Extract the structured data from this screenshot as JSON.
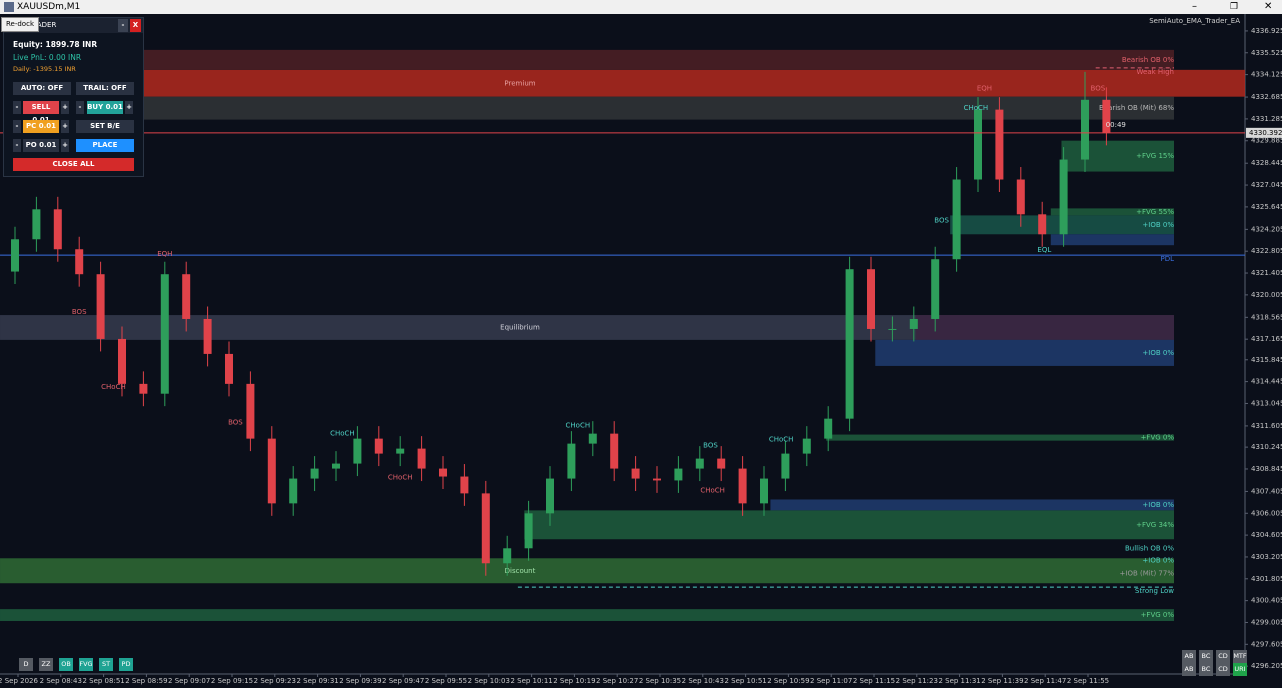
{
  "window": {
    "title": "XAUUSDm,M1",
    "ea_name": "SemiAuto_EMA_Trader_EA"
  },
  "panel": {
    "redock": "Re-dock",
    "title": "TRADER",
    "minimize": "-",
    "close": "X",
    "equity": "Equity: 1899.78 INR",
    "live_pnl": "Live PnL: 0.00 INR",
    "daily": "Daily: -1395.15 INR",
    "auto": "AUTO: OFF",
    "trail": "TRAIL: OFF",
    "minus": "-",
    "plus": "+",
    "sell": "SELL 0.01",
    "buy": "BUY 0.01",
    "pc": "PC 0.01",
    "set_be": "SET B/E",
    "po": "PO 0.01",
    "place": "PLACE",
    "close_all": "CLOSE ALL"
  },
  "toolbar": {
    "left": [
      "D",
      "ZZ",
      "OB",
      "FVG",
      "ST",
      "PD"
    ],
    "right_top": [
      "AB",
      "BC",
      "CD",
      "MTF"
    ],
    "right_bottom": [
      "AB",
      "BC",
      "CD",
      "URI"
    ]
  },
  "chart_data": {
    "type": "candlestick",
    "countdown": "00:49",
    "up_color": "#2e9e5b",
    "down_color": "#e0434a",
    "ylim": [
      4295.83,
      4338.01
    ],
    "yticks": [
      4336.925,
      4335.525,
      4334.125,
      4332.685,
      4331.285,
      4329.885,
      4328.445,
      4327.045,
      4325.645,
      4324.205,
      4322.805,
      4321.405,
      4320.005,
      4318.565,
      4317.165,
      4315.845,
      4314.445,
      4313.045,
      4311.605,
      4310.245,
      4308.845,
      4307.405,
      4306.005,
      4304.605,
      4303.205,
      4301.805,
      4300.405,
      4299.005,
      4297.605,
      4296.205
    ],
    "current_price": 4330.392,
    "time_labels": [
      "2 Sep 2026",
      "2 Sep 08:43",
      "2 Sep 08:51",
      "2 Sep 08:59",
      "2 Sep 09:07",
      "2 Sep 09:15",
      "2 Sep 09:23",
      "2 Sep 09:31",
      "2 Sep 09:39",
      "2 Sep 09:47",
      "2 Sep 09:55",
      "2 Sep 10:03",
      "2 Sep 10:11",
      "2 Sep 10:19",
      "2 Sep 10:27",
      "2 Sep 10:35",
      "2 Sep 10:43",
      "2 Sep 10:51",
      "2 Sep 10:59",
      "2 Sep 11:07",
      "2 Sep 11:15",
      "2 Sep 11:23",
      "2 Sep 11:31",
      "2 Sep 11:39",
      "2 Sep 11:47",
      "2 Sep 11:55"
    ],
    "open": [
      4321.5,
      4323.57,
      4325.49,
      4322.93,
      4321.33,
      4317.18,
      4314.3,
      4313.67,
      4321.33,
      4318.46,
      4316.22,
      4314.3,
      4310.79,
      4306.64,
      4308.23,
      4308.87,
      4309.19,
      4310.79,
      4309.83,
      4310.15,
      4308.87,
      4308.36,
      4307.28,
      4302.8,
      4303.76,
      4306.0,
      4308.23,
      4310.47,
      4311.11,
      4308.87,
      4308.23,
      4308.11,
      4308.87,
      4309.51,
      4308.87,
      4306.64,
      4308.23,
      4309.83,
      4310.79,
      4312.07,
      4321.65,
      4317.82,
      4317.82,
      4318.46,
      4322.29,
      4327.4,
      4331.88,
      4327.4,
      4325.17,
      4323.89,
      4328.68,
      4332.51
    ],
    "high": [
      4324.37,
      4326.29,
      4326.29,
      4323.73,
      4322.13,
      4317.98,
      4315.1,
      4322.13,
      4322.13,
      4319.26,
      4317.02,
      4315.1,
      4311.59,
      4309.03,
      4309.67,
      4309.99,
      4311.59,
      4311.59,
      4310.95,
      4310.95,
      4309.67,
      4309.16,
      4308.08,
      4304.56,
      4306.8,
      4309.03,
      4311.27,
      4311.91,
      4311.91,
      4309.67,
      4309.03,
      4309.67,
      4310.31,
      4310.31,
      4309.67,
      4309.03,
      4310.63,
      4311.59,
      4312.87,
      4322.45,
      4322.45,
      4318.62,
      4319.26,
      4323.09,
      4328.2,
      4332.68,
      4332.68,
      4328.2,
      4325.97,
      4329.48,
      4334.3,
      4333.31
    ],
    "low": [
      4320.7,
      4322.77,
      4322.13,
      4320.53,
      4316.38,
      4313.5,
      4312.87,
      4312.87,
      4317.66,
      4315.42,
      4313.5,
      4309.99,
      4305.84,
      4305.84,
      4307.43,
      4308.07,
      4308.39,
      4309.03,
      4309.03,
      4308.07,
      4307.56,
      4306.48,
      4302.0,
      4302.0,
      4302.96,
      4305.2,
      4307.43,
      4309.67,
      4308.07,
      4307.43,
      4307.31,
      4307.31,
      4308.07,
      4308.07,
      4305.84,
      4305.84,
      4307.43,
      4309.03,
      4309.99,
      4311.27,
      4317.02,
      4317.02,
      4317.02,
      4317.66,
      4321.49,
      4326.6,
      4326.6,
      4324.37,
      4323.09,
      4323.09,
      4327.88,
      4329.59
    ],
    "close": [
      4323.57,
      4325.49,
      4322.93,
      4321.33,
      4317.18,
      4314.3,
      4313.67,
      4321.33,
      4318.46,
      4316.22,
      4314.3,
      4310.79,
      4306.64,
      4308.23,
      4308.87,
      4309.19,
      4310.79,
      4309.83,
      4310.15,
      4308.87,
      4308.36,
      4307.28,
      4302.8,
      4303.76,
      4306.0,
      4308.23,
      4310.47,
      4311.11,
      4308.87,
      4308.23,
      4308.11,
      4308.87,
      4309.51,
      4308.87,
      4306.64,
      4308.23,
      4309.83,
      4310.79,
      4312.07,
      4321.65,
      4317.82,
      4317.82,
      4318.46,
      4322.29,
      4327.4,
      4331.88,
      4327.4,
      4325.17,
      4323.89,
      4328.68,
      4332.51,
      4330.39
    ],
    "areas": [
      {
        "label": "Premium",
        "top": 4334.43,
        "bottom": 4332.71,
        "from": 5.8,
        "color": "#b3291f",
        "text_color": "#e8a0a0"
      },
      {
        "label": "Equilibrium",
        "top": 4318.71,
        "bottom": 4317.12,
        "from": -0.7,
        "color": "#363b4f",
        "text_color": "#d0d0d8"
      },
      {
        "label": "Discount",
        "top": 4303.12,
        "bottom": 4301.52,
        "from": -0.7,
        "color": "#2f6b35",
        "text_color": "#9fe0a8"
      }
    ],
    "zones": [
      {
        "label": "Bearish OB 0%",
        "top": 4335.71,
        "bottom": 4334.43,
        "from": 5.8,
        "color": "#4a1f25",
        "text_color": "#e0606a"
      },
      {
        "label": "Bearish OB (Mit) 68%",
        "top": 4332.71,
        "bottom": 4331.24,
        "from": 5.8,
        "color": "#2f3336",
        "text_color": "#b8b8b8"
      },
      {
        "label": "+FVG 15%",
        "top": 4329.89,
        "bottom": 4327.91,
        "from": 48.9,
        "color": "#1d5a3c",
        "text_color": "#5fd08a"
      },
      {
        "label": "+FVG 55%",
        "top": 4325.55,
        "bottom": 4325.1,
        "from": 48.4,
        "color": "#1d5a3c",
        "text_color": "#5fd08a"
      },
      {
        "label": "+IOB 0%",
        "top": 4325.1,
        "bottom": 4323.89,
        "from": 43.7,
        "color": "#175248",
        "text_color": "#4fd1c5"
      },
      {
        "top": 4323.89,
        "bottom": 4323.19,
        "from": 48.4,
        "color": "#1e3a6b"
      },
      {
        "top": 4318.71,
        "bottom": 4317.12,
        "from": 42.1,
        "color": "#3a2540"
      },
      {
        "label": "+IOB 0%",
        "top": 4317.12,
        "bottom": 4315.45,
        "from": 40.2,
        "color": "#1e3a6b",
        "text_color": "#4fd1c5"
      },
      {
        "label": "+FVG 0%",
        "top": 4311.05,
        "bottom": 4310.66,
        "from": 37.9,
        "color": "#1d5a3c",
        "text_color": "#5fd08a"
      },
      {
        "label": "+IOB 0%",
        "top": 4306.89,
        "bottom": 4306.19,
        "from": 35.3,
        "color": "#1e3a6b",
        "text_color": "#4fd1c5"
      },
      {
        "label": "+FVG 34%",
        "top": 4306.19,
        "bottom": 4304.34,
        "from": 23.8,
        "color": "#1d5a3c",
        "text_color": "#5fd08a"
      },
      {
        "label": "+FVG 0%",
        "top": 4299.86,
        "bottom": 4299.1,
        "from": -0.7,
        "color": "#1d5a3c",
        "text_color": "#5fd08a"
      }
    ],
    "levels": [
      {
        "label": "Weak High",
        "price": 4334.56,
        "line": true,
        "dashed": true,
        "from": 50.5,
        "color": "#e06070"
      },
      {
        "label": "PDL",
        "price": 4322.55,
        "line": true,
        "dashed": false,
        "from": -0.7,
        "color": "#3b6fe0"
      },
      {
        "label": "Bullish OB 0%",
        "price": 4303.76,
        "line": false,
        "color": "#4fd1c5"
      },
      {
        "label": "+IOB 0%",
        "price": 4302.99,
        "line": false,
        "color": "#4fd1c5"
      },
      {
        "label": "+IOB (Mit) 77%",
        "price": 4302.16,
        "line": false,
        "color": "#9a9a9a"
      },
      {
        "label": "Strong Low",
        "price": 4301.27,
        "line": true,
        "dashed": true,
        "from": 23.5,
        "color": "#4fd1c5"
      }
    ],
    "markers": [
      {
        "label": "EQH",
        "price": 4322.61,
        "index": 7,
        "color": "#e0606a"
      },
      {
        "label": "BOS",
        "price": 4318.9,
        "index": 3,
        "color": "#e0606a"
      },
      {
        "label": "CHoCH",
        "price": 4314.11,
        "index": 4.6,
        "color": "#e0606a"
      },
      {
        "label": "BOS",
        "price": 4311.81,
        "index": 10.3,
        "color": "#e0606a"
      },
      {
        "label": "CHoCH",
        "price": 4311.11,
        "index": 15.3,
        "color": "#4fd1c5"
      },
      {
        "label": "CHoCH",
        "price": 4308.3,
        "index": 18,
        "color": "#e0606a"
      },
      {
        "label": "CHoCH",
        "price": 4311.62,
        "index": 26.3,
        "color": "#4fd1c5"
      },
      {
        "label": "BOS",
        "price": 4310.34,
        "index": 32.5,
        "color": "#4fd1c5"
      },
      {
        "label": "CHoCH",
        "price": 4307.47,
        "index": 32.6,
        "color": "#e0606a"
      },
      {
        "label": "CHoCH",
        "price": 4310.73,
        "index": 35.8,
        "color": "#4fd1c5"
      },
      {
        "label": "BOS",
        "price": 4324.78,
        "index": 43.3,
        "color": "#4fd1c5"
      },
      {
        "label": "CHoCH",
        "price": 4332.0,
        "index": 44.9,
        "color": "#4fd1c5"
      },
      {
        "label": "EQH",
        "price": 4333.22,
        "index": 45.3,
        "color": "#e0606a"
      },
      {
        "label": "EQL",
        "price": 4322.87,
        "index": 48.1,
        "color": "#4fd1c5"
      },
      {
        "label": "BOS",
        "price": 4333.22,
        "index": 50.6,
        "color": "#e0606a"
      }
    ]
  }
}
